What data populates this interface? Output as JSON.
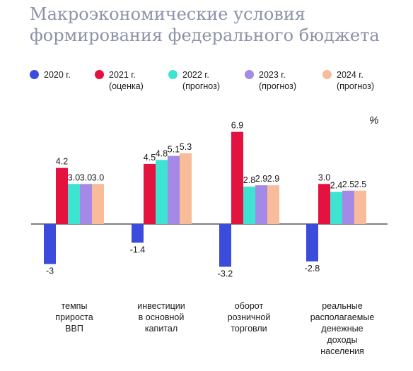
{
  "title": "Макроэкономические условия формирования федерального бюджета",
  "colors": {
    "2020": "#3b4bdb",
    "2021": "#e3123f",
    "2022": "#3fe3d2",
    "2023": "#a48ae6",
    "2024": "#f8bc9a",
    "axis": "#333333"
  },
  "legend": [
    {
      "label": "2020 г.",
      "color_key": "2020"
    },
    {
      "label": "2021 г.\n(оценка)",
      "color_key": "2021"
    },
    {
      "label": "2022 г.\n(прогноз)",
      "color_key": "2022"
    },
    {
      "label": "2023 г.\n(прогноз)",
      "color_key": "2023"
    },
    {
      "label": "2024 г.\n(прогноз)",
      "color_key": "2024"
    }
  ],
  "chart_data": {
    "type": "bar",
    "title": "Макроэкономические условия формирования федерального бюджета",
    "unit": "%",
    "categories": [
      "темпы\nприроста\nВВП",
      "инвестиции\nв основной\nкапитал",
      "оборот\nрозничной\nторговли",
      "реальные\nрасполагаемые\nденежные\nдоходы\nнаселения"
    ],
    "series": [
      {
        "name": "2020 г.",
        "color_key": "2020",
        "values": [
          -3,
          -1.4,
          -3.2,
          -2.8
        ],
        "labels": [
          "-3",
          "-1.4",
          "-3.2",
          "-2.8"
        ]
      },
      {
        "name": "2021 г. (оценка)",
        "color_key": "2021",
        "values": [
          4.2,
          4.5,
          6.9,
          3.0
        ],
        "labels": [
          "4.2",
          "4.5",
          "6.9",
          "3.0"
        ]
      },
      {
        "name": "2022 г. (прогноз)",
        "color_key": "2022",
        "values": [
          3.0,
          4.8,
          2.8,
          2.4
        ],
        "labels": [
          "3.0",
          "4.8",
          "2.8",
          "2.4"
        ]
      },
      {
        "name": "2023 г. (прогноз)",
        "color_key": "2023",
        "values": [
          3.0,
          5.1,
          2.9,
          2.5
        ],
        "labels": [
          "3.0",
          "5.1",
          "2.9",
          "2.5"
        ]
      },
      {
        "name": "2024 г. (прогноз)",
        "color_key": "2024",
        "values": [
          3.0,
          5.3,
          2.9,
          2.5
        ],
        "labels": [
          "3.0",
          "5.3",
          "2.9",
          "2.5"
        ]
      }
    ],
    "ylim": [
      -3.5,
      7.5
    ],
    "grid": false,
    "legend_position": "top"
  }
}
